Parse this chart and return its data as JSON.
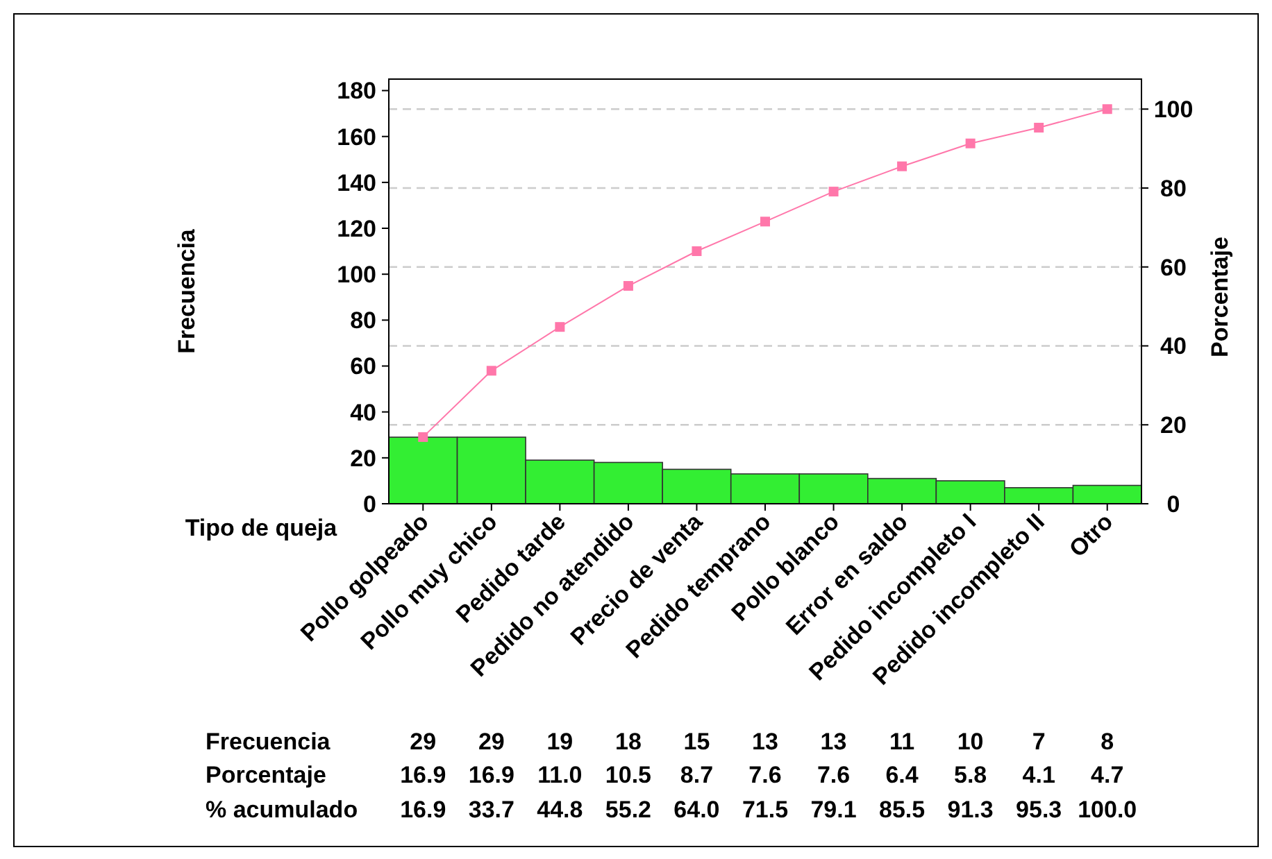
{
  "chart_data": {
    "type": "bar",
    "xlabel": "Tipo de queja",
    "ylabel": "Frecuencia",
    "y2label": "Porcentaje",
    "categories": [
      "Pollo golpeado",
      "Pollo muy chico",
      "Pedido tarde",
      "Pedido no atendido",
      "Precio de venta",
      "Pedido temprano",
      "Pollo blanco",
      "Error en saldo",
      "Pedido incompleto I",
      "Pedido incompleto II",
      "Otro"
    ],
    "series": [
      {
        "color": "#33ee33",
        "values": [
          29,
          29,
          19,
          18,
          15,
          13,
          13,
          11,
          10,
          7,
          8
        ]
      },
      {
        "type": "line",
        "axis": "y2",
        "color": "#ff77aa",
        "values": [
          16.9,
          33.7,
          44.8,
          55.2,
          64.0,
          71.5,
          79.1,
          85.5,
          91.3,
          95.3,
          100.0
        ],
        "value_labels": [
          "16.9",
          "33.7",
          "44.8",
          "55.2",
          "64.0",
          "71.5",
          "79.1",
          "85.5",
          "91.3",
          "95.3",
          "100.0"
        ]
      }
    ],
    "data_labels": true,
    "marker": "square",
    "annotations": [
      "Frecuencia",
      "Porcentaje",
      "% acumulado",
      "16.9",
      "16.9",
      "11.0",
      "10.5",
      "8.7",
      "7.6",
      "7.6",
      "6.4",
      "5.8",
      "4.1",
      "4.7"
    ],
    "ylim": [
      0,
      185
    ],
    "yticks": [
      0,
      20,
      40,
      60,
      80,
      100,
      120,
      140,
      160,
      180
    ],
    "y2lim": [
      0,
      107.6
    ],
    "y2ticks": [
      0,
      20,
      40,
      60,
      80,
      100
    ],
    "ref_lines": [
      {
        "axis": "y2",
        "value": 20,
        "line_style": "dashed",
        "color": "#cccccc"
      },
      {
        "axis": "y2",
        "value": 40,
        "line_style": "dashed",
        "color": "#cccccc"
      },
      {
        "axis": "y2",
        "value": 60,
        "line_style": "dashed",
        "color": "#cccccc"
      },
      {
        "axis": "y2",
        "value": 80,
        "line_style": "dashed",
        "color": "#cccccc"
      },
      {
        "axis": "y2",
        "value": 100,
        "line_style": "dashed",
        "color": "#cccccc"
      }
    ]
  }
}
